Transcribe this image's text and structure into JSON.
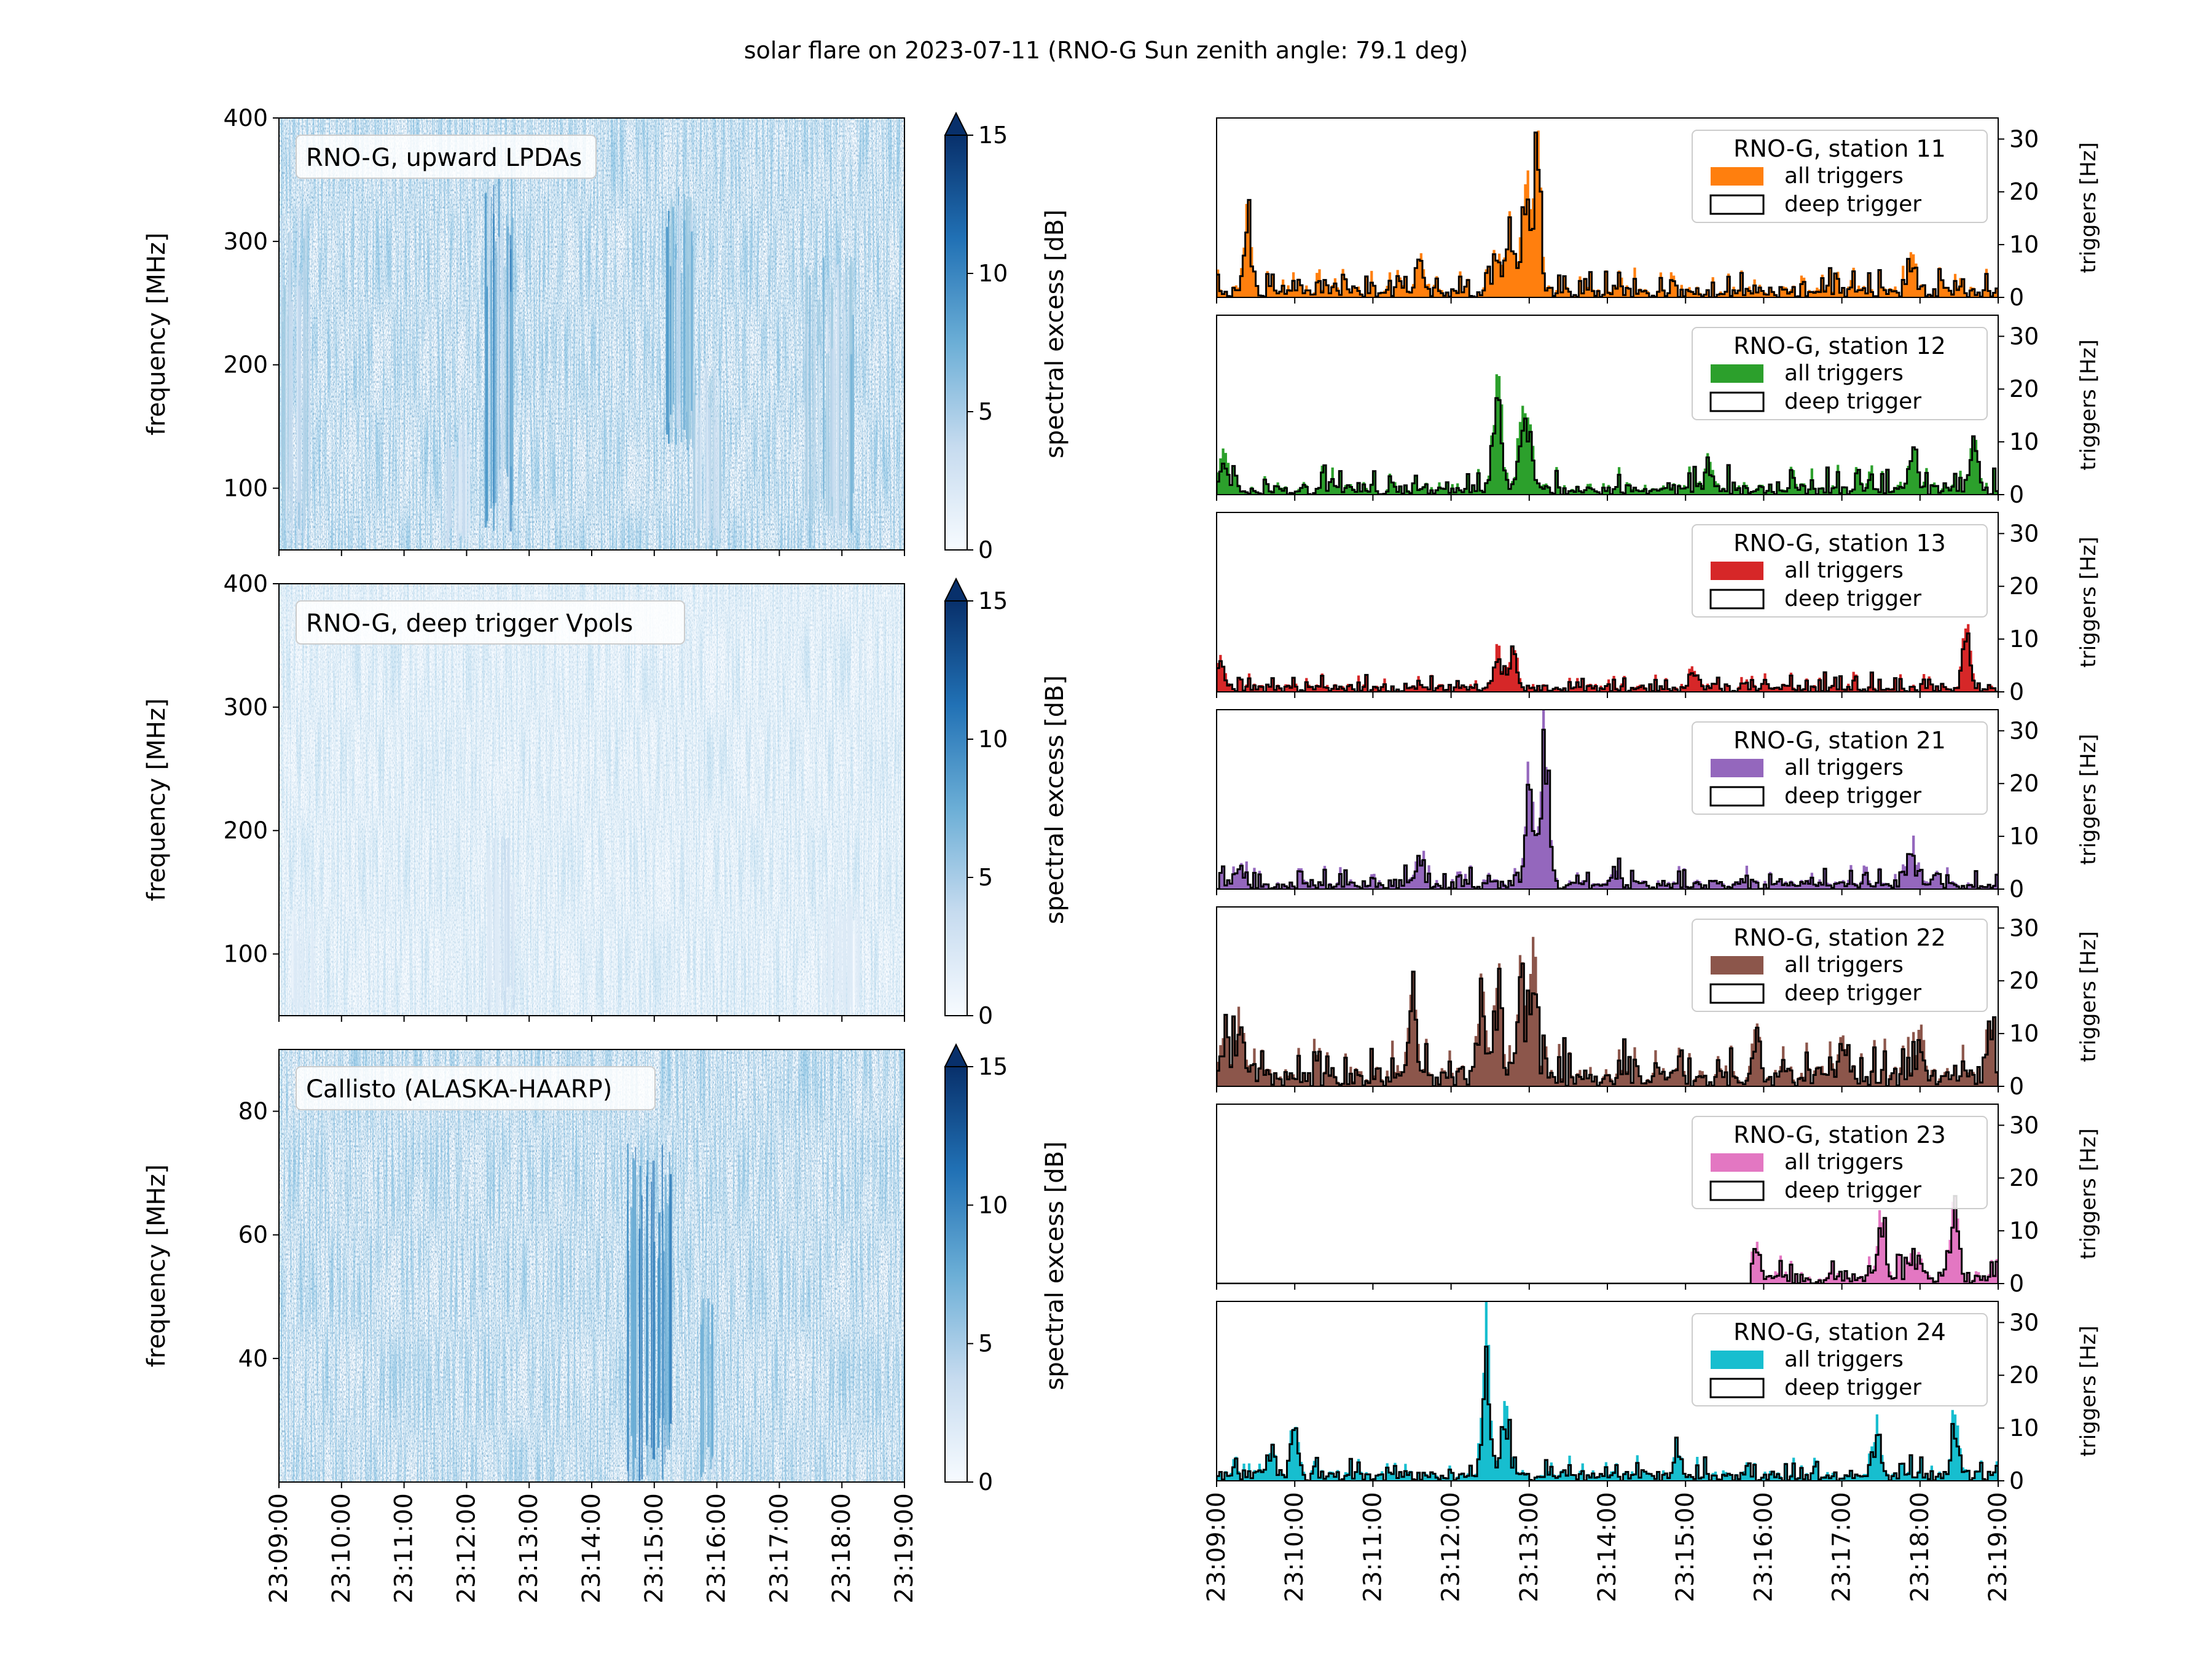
{
  "figure": {
    "title": "solar flare on 2023-07-11 (RNO-G Sun zenith angle: 79.1 deg)"
  },
  "time_ticks": [
    "23:09:00",
    "23:10:00",
    "23:11:00",
    "23:12:00",
    "23:13:00",
    "23:14:00",
    "23:15:00",
    "23:16:00",
    "23:17:00",
    "23:18:00",
    "23:19:00"
  ],
  "colors": {
    "cmap_low": "#f7fbff",
    "cmap_high": "#08306b"
  },
  "chart_data": [
    {
      "type": "heatmap",
      "panel": "spectrogram",
      "label": "RNO-G, upward LPDAs",
      "ylabel": "frequency [MHz]",
      "ylim": [
        50,
        400
      ],
      "yticks": [
        100,
        200,
        300,
        400
      ],
      "colorbar_label": "spectral excess [dB]",
      "colorbar_range": [
        0,
        15
      ],
      "colorbar_ticks": [
        0,
        5,
        10,
        15
      ],
      "intensity": 1.0,
      "bursts": [
        {
          "t": 0.0,
          "w": 0.5,
          "f": [
            50,
            330
          ],
          "a": 0.55
        },
        {
          "t": 2.6,
          "w": 0.45,
          "f": [
            50,
            160
          ],
          "a": 0.3
        },
        {
          "t": 3.3,
          "w": 0.45,
          "f": [
            60,
            360
          ],
          "a": 1.0
        },
        {
          "t": 6.2,
          "w": 0.45,
          "f": [
            130,
            350
          ],
          "a": 0.75
        },
        {
          "t": 6.6,
          "w": 0.5,
          "f": [
            50,
            200
          ],
          "a": 0.5
        },
        {
          "t": 8.4,
          "w": 0.8,
          "f": [
            50,
            290
          ],
          "a": 0.6
        }
      ]
    },
    {
      "type": "heatmap",
      "panel": "spectrogram",
      "label": "RNO-G, deep trigger Vpols",
      "ylabel": "frequency [MHz]",
      "ylim": [
        50,
        400
      ],
      "yticks": [
        100,
        200,
        300,
        400
      ],
      "colorbar_label": "spectral excess [dB]",
      "colorbar_range": [
        0,
        15
      ],
      "colorbar_ticks": [
        0,
        5,
        10,
        15
      ],
      "intensity": 0.45,
      "bursts": [
        {
          "t": 0.2,
          "w": 0.4,
          "f": [
            50,
            140
          ],
          "a": 0.5
        },
        {
          "t": 3.3,
          "w": 0.45,
          "f": [
            50,
            200
          ],
          "a": 0.8
        },
        {
          "t": 8.7,
          "w": 0.6,
          "f": [
            50,
            150
          ],
          "a": 0.5
        }
      ]
    },
    {
      "type": "heatmap",
      "panel": "spectrogram",
      "label": "Callisto (ALASKA-HAARP)",
      "ylabel": "frequency [MHz]",
      "ylim": [
        20,
        90
      ],
      "yticks": [
        40,
        60,
        80
      ],
      "colorbar_label": "spectral excess [dB]",
      "colorbar_range": [
        0,
        15
      ],
      "colorbar_ticks": [
        0,
        5,
        10,
        15
      ],
      "intensity": 1.0,
      "bursts": [
        {
          "t": 5.55,
          "w": 0.35,
          "f": [
            20,
            75
          ],
          "a": 1.0
        },
        {
          "t": 5.95,
          "w": 0.35,
          "f": [
            20,
            75
          ],
          "a": 1.0
        },
        {
          "t": 6.75,
          "w": 0.2,
          "f": [
            20,
            50
          ],
          "a": 0.8
        }
      ]
    },
    {
      "type": "bar",
      "panel": "triggers",
      "legend_title": "RNO-G, station 11",
      "legend": [
        "all triggers",
        "deep trigger"
      ],
      "color": "#ff7f0e",
      "ylabel": "triggers [Hz]",
      "ylim": [
        0,
        34
      ],
      "yticks": [
        0,
        10,
        20,
        30
      ],
      "peaks": [
        [
          0.4,
          18
        ],
        [
          2.6,
          9
        ],
        [
          3.6,
          8
        ],
        [
          3.75,
          14
        ],
        [
          3.95,
          24
        ],
        [
          4.1,
          32
        ],
        [
          8.9,
          8
        ]
      ],
      "base": 1.5
    },
    {
      "type": "bar",
      "panel": "triggers",
      "legend_title": "RNO-G, station 12",
      "legend": [
        "all triggers",
        "deep trigger"
      ],
      "color": "#2ca02c",
      "ylabel": "triggers [Hz]",
      "ylim": [
        0,
        34
      ],
      "yticks": [
        0,
        10,
        20,
        30
      ],
      "peaks": [
        [
          0.1,
          10
        ],
        [
          3.6,
          28
        ],
        [
          3.9,
          14
        ],
        [
          4.0,
          13
        ],
        [
          6.3,
          6
        ],
        [
          9.7,
          11
        ],
        [
          8.9,
          7
        ]
      ],
      "base": 1.5
    },
    {
      "type": "bar",
      "panel": "triggers",
      "legend_title": "RNO-G, station 13",
      "legend": [
        "all triggers",
        "deep trigger"
      ],
      "color": "#d62728",
      "ylabel": "triggers [Hz]",
      "ylim": [
        0,
        34
      ],
      "yticks": [
        0,
        10,
        20,
        30
      ],
      "peaks": [
        [
          0.05,
          7
        ],
        [
          3.6,
          8
        ],
        [
          3.8,
          8
        ],
        [
          6.1,
          5
        ],
        [
          9.6,
          13
        ]
      ],
      "base": 1.0
    },
    {
      "type": "bar",
      "panel": "triggers",
      "legend_title": "RNO-G, station 21",
      "legend": [
        "all triggers",
        "deep trigger"
      ],
      "color": "#9467bd",
      "ylabel": "triggers [Hz]",
      "ylim": [
        0,
        34
      ],
      "yticks": [
        0,
        10,
        20,
        30
      ],
      "peaks": [
        [
          0.3,
          5
        ],
        [
          2.6,
          6
        ],
        [
          4.0,
          24
        ],
        [
          4.2,
          33
        ],
        [
          5.1,
          3
        ],
        [
          8.9,
          6
        ]
      ],
      "base": 1.2
    },
    {
      "type": "bar",
      "panel": "triggers",
      "legend_title": "RNO-G, station 22",
      "legend": [
        "all triggers",
        "deep trigger"
      ],
      "color": "#8c564b",
      "ylabel": "triggers [Hz]",
      "ylim": [
        0,
        34
      ],
      "yticks": [
        0,
        10,
        20,
        30
      ],
      "peaks": [
        [
          0.1,
          12
        ],
        [
          0.3,
          14
        ],
        [
          2.5,
          20
        ],
        [
          3.4,
          18
        ],
        [
          3.6,
          21
        ],
        [
          3.9,
          24
        ],
        [
          4.05,
          32
        ],
        [
          6.9,
          11
        ],
        [
          8.0,
          9
        ],
        [
          9.0,
          10
        ],
        [
          9.9,
          12
        ]
      ],
      "base": 2.5
    },
    {
      "type": "bar",
      "panel": "triggers",
      "legend_title": "RNO-G, station 23",
      "legend": [
        "all triggers",
        "deep trigger"
      ],
      "color": "#e377c2",
      "ylabel": "triggers [Hz]",
      "ylim": [
        0,
        34
      ],
      "yticks": [
        0,
        10,
        20,
        30
      ],
      "peaks": [
        [
          6.9,
          9
        ],
        [
          8.5,
          14
        ],
        [
          8.9,
          6
        ],
        [
          9.45,
          17
        ]
      ],
      "base": 1.5,
      "start": 6.85
    },
    {
      "type": "bar",
      "panel": "triggers",
      "legend_title": "RNO-G, station 24",
      "legend": [
        "all triggers",
        "deep trigger"
      ],
      "color": "#17becf",
      "ylabel": "triggers [Hz]",
      "ylim": [
        0,
        34
      ],
      "yticks": [
        0,
        10,
        20,
        30
      ],
      "peaks": [
        [
          0.7,
          6
        ],
        [
          1.0,
          10
        ],
        [
          3.45,
          33
        ],
        [
          3.7,
          16
        ],
        [
          5.9,
          6
        ],
        [
          8.45,
          11
        ],
        [
          9.45,
          13
        ]
      ],
      "base": 1.3
    }
  ]
}
